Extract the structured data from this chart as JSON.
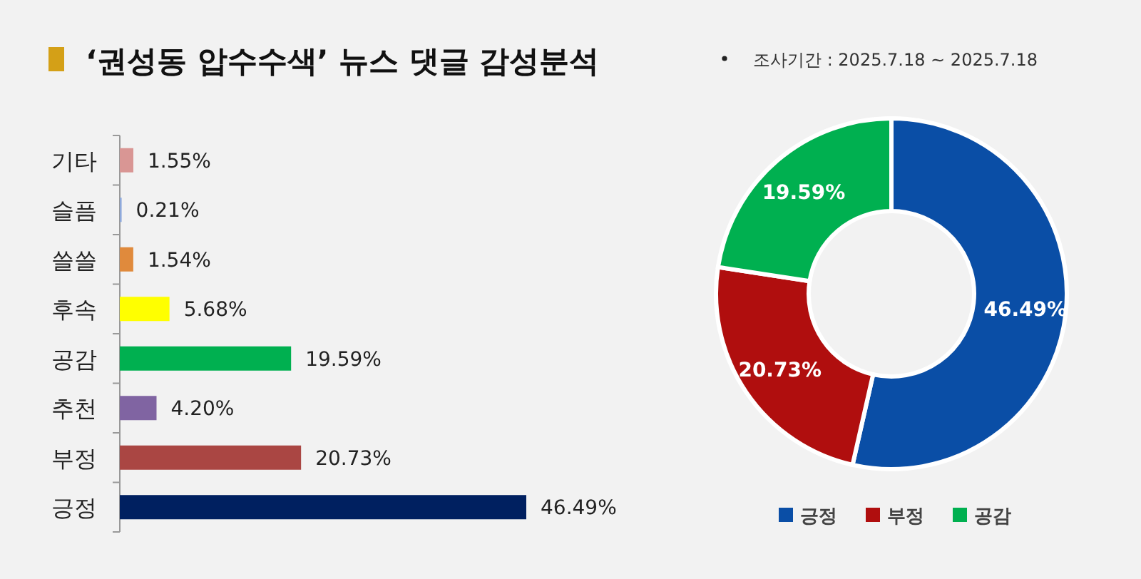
{
  "chart_data": [
    {
      "type": "bar",
      "orientation": "horizontal",
      "title": "‘권성동 압수수색’ 뉴스 댓글 감성분석",
      "categories": [
        "기타",
        "슬픔",
        "쓸쓸",
        "후속",
        "공감",
        "추천",
        "부정",
        "긍정"
      ],
      "values": [
        1.55,
        0.21,
        1.54,
        5.68,
        19.59,
        4.2,
        20.73,
        46.49
      ],
      "value_labels": [
        "1.55%",
        "0.21%",
        "1.54%",
        "5.68%",
        "19.59%",
        "4.20%",
        "20.73%",
        "46.49%"
      ],
      "colors": [
        "#d99694",
        "#8ea9db",
        "#e08a3c",
        "#ffff00",
        "#00b050",
        "#8064a2",
        "#aa4643",
        "#002060"
      ],
      "legend": false
    },
    {
      "type": "donut",
      "subtitle": "조사기간 : 2025.7.18 ~ 2025.7.18",
      "categories": [
        "긍정",
        "부정",
        "공감"
      ],
      "values": [
        46.49,
        20.73,
        19.59
      ],
      "value_labels": [
        "46.49%",
        "20.73%",
        "19.59%"
      ],
      "colors": [
        "#0a4ea6",
        "#b00e0e",
        "#00b050"
      ],
      "legend": "bottom"
    }
  ]
}
